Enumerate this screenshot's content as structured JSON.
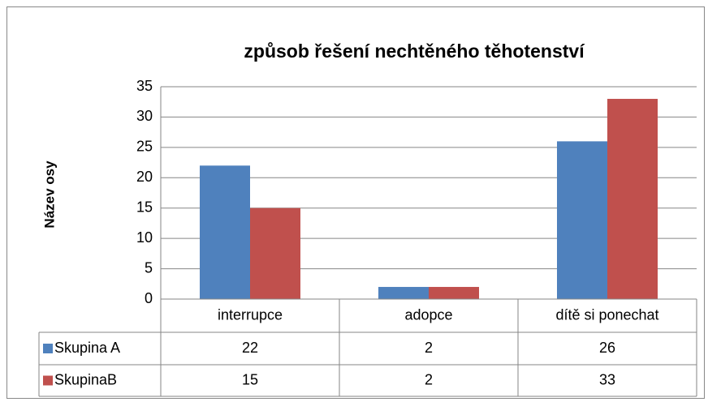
{
  "chart_data": {
    "type": "bar",
    "title": "způsob řešení nechtěného těhotenství",
    "y_label": "Název osy",
    "categories": [
      "interrupce",
      "adopce",
      "dítě si ponechat"
    ],
    "series": [
      {
        "name": "Skupina A",
        "color": "#4f81bd",
        "values": [
          22,
          2,
          26
        ]
      },
      {
        "name": "SkupinaB",
        "color": "#c0504d",
        "values": [
          15,
          2,
          33
        ]
      }
    ],
    "ylim": [
      0,
      35
    ],
    "yticks": [
      0,
      5,
      10,
      15,
      20,
      25,
      30,
      35
    ],
    "grid": true,
    "data_table": true
  }
}
